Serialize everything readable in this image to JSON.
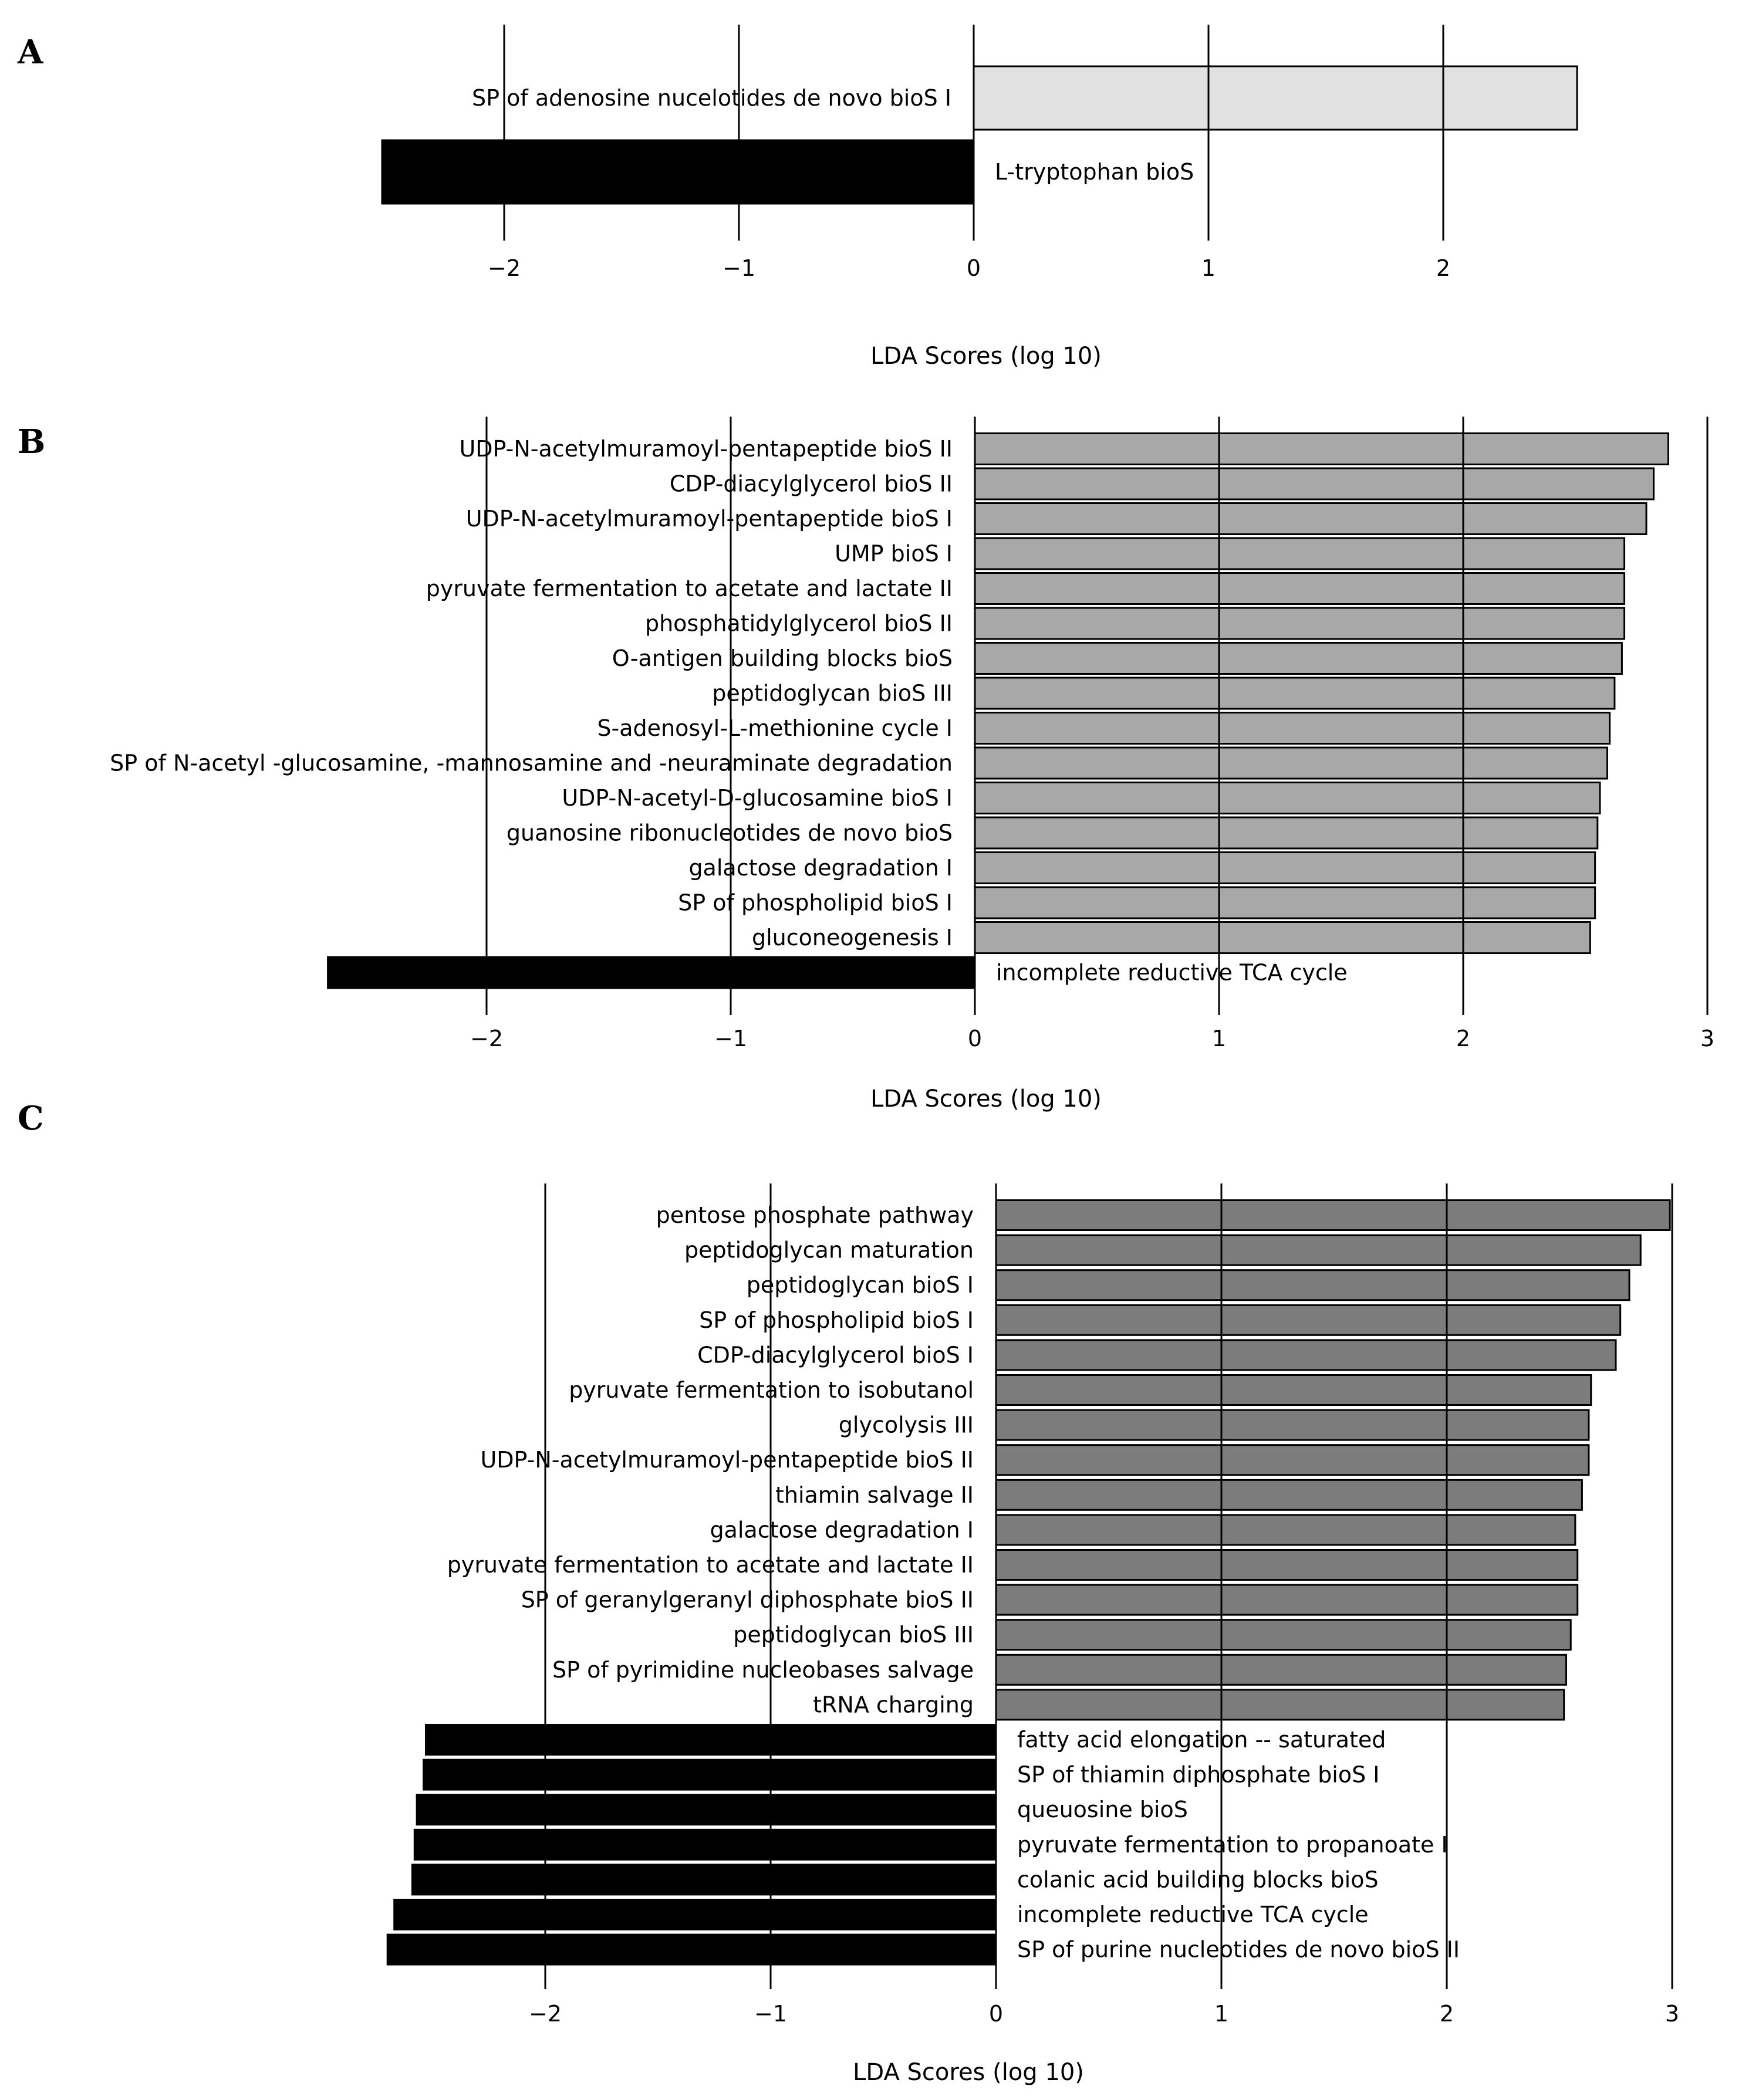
{
  "chart_data": [
    {
      "panel": "A",
      "type": "bar",
      "orientation": "horizontal",
      "xlabel": "LDA Scores (log 10)",
      "xticks": [
        -2,
        -1,
        0,
        1,
        2
      ],
      "categories": [
        "SP of adenosine nucelotides de novo bioS I",
        "L-tryptophan bioS"
      ],
      "values": [
        2.57,
        -2.52
      ],
      "colors": [
        "#e1e1e1",
        "#000000"
      ],
      "grid": true
    },
    {
      "panel": "B",
      "type": "bar",
      "orientation": "horizontal",
      "xlabel": "LDA Scores (log 10)",
      "xticks": [
        -2,
        -1,
        0,
        1,
        2,
        3
      ],
      "categories": [
        "UDP-N-acetylmuramoyl-pentapeptide bioS II",
        "CDP-diacylglycerol bioS II",
        "UDP-N-acetylmuramoyl-pentapeptide bioS I",
        "UMP bioS I",
        "pyruvate fermentation to acetate and lactate II",
        "phosphatidylglycerol bioS II",
        "O-antigen building blocks bioS",
        "peptidoglycan bioS III",
        "S-adenosyl-L-methionine cycle I",
        "SP of N-acetyl -glucosamine, -mannosamine and -neuraminate degradation",
        "UDP-N-acetyl-D-glucosamine  bioS I",
        "guanosine ribonucleotides de novo bioS",
        "galactose degradation I",
        "SP of phospholipid bioS I",
        "gluconeogenesis I",
        "incomplete reductive TCA cycle"
      ],
      "values": [
        2.84,
        2.78,
        2.75,
        2.66,
        2.66,
        2.66,
        2.65,
        2.62,
        2.6,
        2.59,
        2.56,
        2.55,
        2.54,
        2.54,
        2.52,
        -2.65
      ],
      "colors": [
        "#a8a8a8",
        "#000000"
      ],
      "grid": true
    },
    {
      "panel": "C",
      "type": "bar",
      "orientation": "horizontal",
      "xlabel": "LDA Scores (log 10)",
      "xticks": [
        -2,
        -1,
        0,
        1,
        2,
        3
      ],
      "categories": [
        "pentose phosphate pathway",
        "peptidoglycan maturation",
        "peptidoglycan bioS I",
        "SP of phospholipid bioS I",
        "CDP-diacylglycerol bioS I",
        "pyruvate fermentation to isobutanol",
        "glycolysis III",
        "UDP-N-acetylmuramoyl-pentapeptide bioS II",
        "thiamin salvage II",
        "galactose degradation I",
        "pyruvate fermentation to acetate and lactate II",
        "SP of geranylgeranyl diphosphate bioS II",
        "peptidoglycan bioS III",
        "SP of pyrimidine nucleobases salvage",
        "tRNA charging",
        "fatty acid elongation -- saturated",
        "SP of thiamin diphosphate bioS I",
        "queuosine bioS",
        "pyruvate fermentation to propanoate I",
        "colanic acid building blocks bioS",
        "incomplete reductive TCA cycle",
        "SP of purine nucleotides de novo bioS II"
      ],
      "values": [
        2.99,
        2.86,
        2.81,
        2.77,
        2.75,
        2.64,
        2.63,
        2.63,
        2.6,
        2.57,
        2.58,
        2.58,
        2.55,
        2.53,
        2.52,
        -2.53,
        -2.54,
        -2.57,
        -2.58,
        -2.59,
        -2.67,
        -2.7
      ],
      "colors": [
        "#7c7c7c",
        "#000000"
      ],
      "grid": true
    }
  ]
}
